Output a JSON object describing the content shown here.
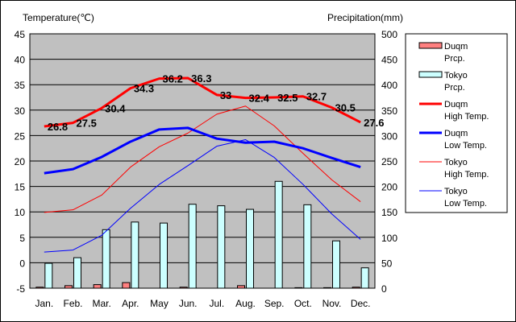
{
  "chart_data": {
    "type": "bar+line",
    "title": "",
    "ylabel_left": "Temperature(℃)",
    "ylabel_right": "Precipitation(mm)",
    "categories": [
      "Jan.",
      "Feb.",
      "Mar.",
      "Apr.",
      "May",
      "Jun.",
      "Jul.",
      "Aug.",
      "Sep.",
      "Oct.",
      "Nov.",
      "Dec."
    ],
    "ylim_left": [
      -5,
      45
    ],
    "ylim_right": [
      0,
      500
    ],
    "yticks_left": [
      "45",
      "40",
      "35",
      "30",
      "25",
      "20",
      "15",
      "10",
      "5",
      "0",
      "-5"
    ],
    "yticks_right": [
      "500",
      "450",
      "400",
      "350",
      "300",
      "250",
      "200",
      "150",
      "100",
      "50",
      "0"
    ],
    "plot_background": "#c0c0c0",
    "grid": true,
    "legend_position": "right",
    "bar_series": [
      {
        "name": "Duqm\nPrcp.",
        "color": "#ff8080",
        "values": [
          2,
          5,
          7,
          11,
          0,
          2,
          0,
          5,
          0,
          1,
          1,
          2
        ]
      },
      {
        "name": "Tokyo\nPrcp.",
        "color": "#ccffff",
        "values": [
          49,
          60,
          115,
          130,
          128,
          165,
          162,
          155,
          210,
          164,
          93,
          40
        ]
      }
    ],
    "line_series": [
      {
        "name": "Duqm\nHigh Temp.",
        "color": "#ff0000",
        "width": 3,
        "values": [
          26.8,
          27.5,
          30.4,
          34.3,
          36.2,
          36.3,
          33,
          32.4,
          32.5,
          32.7,
          30.5,
          27.6
        ],
        "labels": [
          "26.8",
          "27.5",
          "30.4",
          "34.3",
          "36.2",
          "36.3",
          "33",
          "32.4",
          "32.5",
          "32.7",
          "30.5",
          "27.6"
        ]
      },
      {
        "name": "Duqm\nLow Temp.",
        "color": "#0000ff",
        "width": 3,
        "values": [
          17.6,
          18.4,
          20.8,
          23.8,
          26.2,
          26.5,
          24.4,
          23.6,
          23.8,
          22.5,
          20.6,
          18.8
        ]
      },
      {
        "name": "Tokyo\nHigh Temp.",
        "color": "#ff0000",
        "width": 1,
        "values": [
          9.9,
          10.4,
          13.3,
          18.8,
          22.8,
          25.5,
          29.2,
          30.8,
          26.9,
          21.5,
          16.3,
          12.0
        ]
      },
      {
        "name": "Tokyo\nLow Temp.",
        "color": "#0000ff",
        "width": 1,
        "values": [
          2.1,
          2.5,
          5.4,
          10.7,
          15.4,
          19.1,
          22.9,
          24.2,
          20.7,
          15.4,
          9.6,
          4.6
        ]
      }
    ]
  }
}
